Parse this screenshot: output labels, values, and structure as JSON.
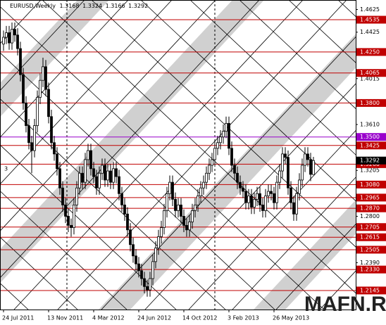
{
  "chart_data": {
    "type": "candlestick",
    "symbol_label": "EURUSD,Weekly",
    "categories": [
      "24 Jul 2011",
      null,
      null,
      null,
      null,
      null,
      null,
      null,
      null,
      null,
      null,
      null,
      null,
      null,
      null,
      null,
      "13 Nov 2011",
      null,
      null,
      null,
      null,
      null,
      null,
      null,
      null,
      null,
      null,
      null,
      null,
      null,
      null,
      null,
      "4 Mar 2012",
      null,
      null,
      null,
      null,
      null,
      null,
      null,
      null,
      null,
      null,
      null,
      null,
      null,
      null,
      null,
      "24 Jun 2012",
      null,
      null,
      null,
      null,
      null,
      null,
      null,
      null,
      null,
      null,
      null,
      null,
      null,
      null,
      null,
      "14 Oct 2012",
      null,
      null,
      null,
      null,
      null,
      null,
      null,
      null,
      null,
      null,
      null,
      null,
      null,
      null,
      null,
      "3 Feb 2013",
      null,
      null,
      null,
      null,
      null,
      null,
      null,
      null,
      null,
      null,
      null,
      null,
      null,
      null,
      null,
      "26 May 2013",
      null,
      null,
      null,
      null,
      null,
      null,
      null,
      null,
      null,
      null,
      null,
      null,
      null,
      null
    ],
    "open": [
      1.432,
      1.438,
      1.442,
      1.433,
      1.445,
      1.44,
      1.428,
      1.405,
      1.38,
      1.36,
      1.345,
      1.338,
      1.36,
      1.385,
      1.4,
      1.412,
      1.392,
      1.368,
      1.345,
      1.335,
      1.322,
      1.305,
      1.29,
      1.28,
      1.272,
      1.27,
      1.29,
      1.305,
      1.318,
      1.31,
      1.33,
      1.338,
      1.322,
      1.315,
      1.305,
      1.318,
      1.325,
      1.312,
      1.32,
      1.31,
      1.322,
      1.315,
      1.3,
      1.29,
      1.282,
      1.268,
      1.255,
      1.245,
      1.238,
      1.232,
      1.225,
      1.218,
      1.215,
      1.225,
      1.24,
      1.252,
      1.262,
      1.27,
      1.285,
      1.3,
      1.31,
      1.295,
      1.285,
      1.29,
      1.28,
      1.272,
      1.268,
      1.275,
      1.285,
      1.29,
      1.298,
      1.305,
      1.31,
      1.318,
      1.325,
      1.33,
      1.34,
      1.345,
      1.35,
      1.355,
      1.362,
      1.34,
      1.325,
      1.318,
      1.31,
      1.305,
      1.302,
      1.292,
      1.298,
      1.288,
      1.295,
      1.3,
      1.29,
      1.285,
      1.298,
      1.302,
      1.3,
      1.292,
      1.31,
      1.32,
      1.335,
      1.332,
      1.305,
      1.292,
      1.282,
      1.3,
      1.312,
      1.325,
      1.335,
      1.33,
      1.3168
    ],
    "high": [
      1.444,
      1.448,
      1.448,
      1.451,
      1.451,
      1.446,
      1.434,
      1.411,
      1.386,
      1.366,
      1.351,
      1.366,
      1.391,
      1.406,
      1.42,
      1.418,
      1.398,
      1.374,
      1.351,
      1.341,
      1.328,
      1.311,
      1.296,
      1.286,
      1.278,
      1.296,
      1.311,
      1.324,
      1.324,
      1.336,
      1.344,
      1.344,
      1.328,
      1.321,
      1.324,
      1.331,
      1.331,
      1.326,
      1.326,
      1.328,
      1.328,
      1.321,
      1.306,
      1.296,
      1.288,
      1.274,
      1.261,
      1.251,
      1.244,
      1.238,
      1.231,
      1.224,
      1.231,
      1.246,
      1.258,
      1.268,
      1.276,
      1.291,
      1.306,
      1.316,
      1.316,
      1.301,
      1.296,
      1.296,
      1.286,
      1.278,
      1.281,
      1.291,
      1.296,
      1.304,
      1.311,
      1.316,
      1.324,
      1.331,
      1.336,
      1.346,
      1.351,
      1.356,
      1.361,
      1.368,
      1.368,
      1.346,
      1.331,
      1.324,
      1.316,
      1.311,
      1.308,
      1.304,
      1.304,
      1.301,
      1.306,
      1.306,
      1.296,
      1.304,
      1.308,
      1.308,
      1.306,
      1.316,
      1.326,
      1.341,
      1.341,
      1.338,
      1.311,
      1.298,
      1.306,
      1.318,
      1.331,
      1.341,
      1.341,
      1.336,
      1.3324
    ],
    "low": [
      1.426,
      1.432,
      1.427,
      1.427,
      1.434,
      1.422,
      1.399,
      1.374,
      1.354,
      1.339,
      1.318,
      1.332,
      1.354,
      1.379,
      1.394,
      1.386,
      1.362,
      1.339,
      1.329,
      1.316,
      1.299,
      1.284,
      1.274,
      1.266,
      1.262,
      1.264,
      1.284,
      1.299,
      1.304,
      1.304,
      1.324,
      1.316,
      1.309,
      1.299,
      1.299,
      1.312,
      1.306,
      1.306,
      1.304,
      1.304,
      1.309,
      1.294,
      1.284,
      1.276,
      1.262,
      1.249,
      1.239,
      1.232,
      1.226,
      1.219,
      1.212,
      1.209,
      1.209,
      1.219,
      1.234,
      1.246,
      1.256,
      1.264,
      1.279,
      1.294,
      1.289,
      1.279,
      1.279,
      1.274,
      1.266,
      1.262,
      1.262,
      1.269,
      1.279,
      1.284,
      1.292,
      1.299,
      1.304,
      1.312,
      1.319,
      1.324,
      1.334,
      1.339,
      1.344,
      1.349,
      1.334,
      1.319,
      1.312,
      1.304,
      1.299,
      1.296,
      1.286,
      1.286,
      1.282,
      1.282,
      1.289,
      1.284,
      1.279,
      1.279,
      1.292,
      1.294,
      1.286,
      1.286,
      1.304,
      1.314,
      1.326,
      1.299,
      1.286,
      1.276,
      1.276,
      1.294,
      1.306,
      1.319,
      1.324,
      1.311,
      1.3166
    ],
    "close": [
      1.438,
      1.442,
      1.433,
      1.445,
      1.44,
      1.428,
      1.405,
      1.38,
      1.36,
      1.345,
      1.338,
      1.36,
      1.385,
      1.4,
      1.412,
      1.392,
      1.368,
      1.345,
      1.335,
      1.322,
      1.305,
      1.29,
      1.28,
      1.272,
      1.27,
      1.29,
      1.305,
      1.318,
      1.31,
      1.33,
      1.338,
      1.322,
      1.315,
      1.305,
      1.318,
      1.325,
      1.312,
      1.32,
      1.31,
      1.322,
      1.315,
      1.3,
      1.29,
      1.282,
      1.268,
      1.255,
      1.245,
      1.238,
      1.232,
      1.225,
      1.218,
      1.215,
      1.225,
      1.24,
      1.252,
      1.262,
      1.27,
      1.285,
      1.3,
      1.31,
      1.295,
      1.285,
      1.29,
      1.28,
      1.272,
      1.268,
      1.275,
      1.285,
      1.29,
      1.298,
      1.305,
      1.31,
      1.318,
      1.325,
      1.33,
      1.34,
      1.345,
      1.35,
      1.355,
      1.362,
      1.34,
      1.325,
      1.318,
      1.31,
      1.305,
      1.302,
      1.292,
      1.298,
      1.288,
      1.295,
      1.3,
      1.29,
      1.285,
      1.298,
      1.302,
      1.3,
      1.292,
      1.31,
      1.32,
      1.335,
      1.332,
      1.305,
      1.292,
      1.282,
      1.3,
      1.312,
      1.325,
      1.335,
      1.33,
      1.317,
      1.3292
    ],
    "up_color": "#ffffff",
    "down_color": "#000000",
    "ylim": [
      1.1977,
      1.4709
    ],
    "yticks": [
      1.4625,
      1.4425,
      1.4015,
      {
        "value": 1.361,
        "label": "1.3610"
      },
      1.3205,
      {
        "value": 1.28,
        "label": "1.2800"
      },
      {
        "value": 1.239,
        "label": "1.2390"
      }
    ],
    "levels": [
      {
        "value": 1.4535,
        "color": "#c00000"
      },
      {
        "value": 1.425,
        "label": "1.4250",
        "color": "#c00000"
      },
      {
        "value": 1.4065,
        "color": "#c00000"
      },
      {
        "value": 1.38,
        "label": "1.3800",
        "color": "#c00000"
      },
      {
        "value": 1.35,
        "label": "1.3500",
        "color": "#9900cc"
      },
      {
        "value": 1.3425,
        "color": "#c00000"
      },
      {
        "value": 1.326,
        "label": "1.3260",
        "color": "#c00000"
      },
      {
        "value": 1.308,
        "label": "1.3080",
        "color": "#c00000"
      },
      {
        "value": 1.2965,
        "color": "#c00000"
      },
      {
        "value": 1.287,
        "label": "1.2870",
        "color": "#c00000"
      },
      {
        "value": 1.2705,
        "color": "#c00000"
      },
      {
        "value": 1.2615,
        "color": "#c00000"
      },
      {
        "value": 1.2505,
        "color": "#c00000"
      },
      {
        "value": 1.233,
        "label": "1.2330",
        "color": "#c00000"
      },
      {
        "value": 1.2145,
        "color": "#c00000"
      }
    ],
    "fan_label": "3",
    "watermark": "MAFN.RU"
  }
}
